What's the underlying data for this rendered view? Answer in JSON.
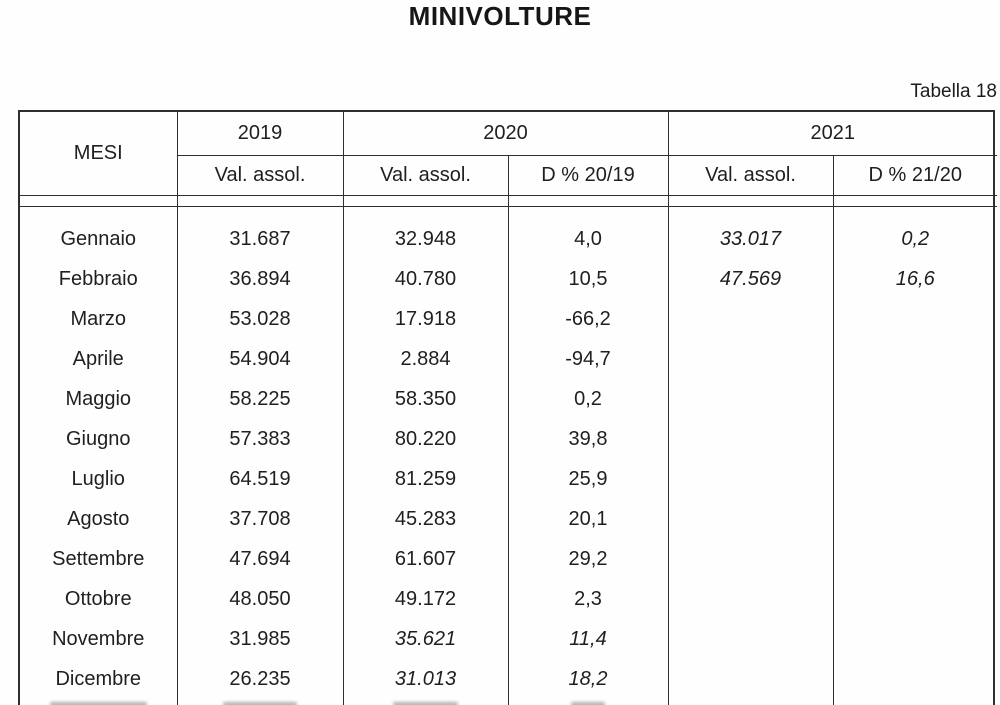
{
  "page": {
    "title": "MINIVOLTURE",
    "table_caption": "Tabella 18"
  },
  "table": {
    "header": {
      "mesi": "MESI",
      "years": [
        {
          "label": "2019"
        },
        {
          "label": "2020"
        },
        {
          "label": "2021"
        }
      ],
      "subcols": [
        "Val. assol.",
        "Val. assol.",
        "D % 20/19",
        "Val. assol.",
        "D % 21/20"
      ]
    },
    "rows": [
      {
        "cells": [
          "Gennaio",
          "31.687",
          "32.948",
          "4,0",
          "33.017",
          "0,2"
        ],
        "italic": [
          4,
          5
        ]
      },
      {
        "cells": [
          "Febbraio",
          "36.894",
          "40.780",
          "10,5",
          "47.569",
          "16,6"
        ],
        "italic": [
          4,
          5
        ]
      },
      {
        "cells": [
          "Marzo",
          "53.028",
          "17.918",
          "-66,2",
          "",
          ""
        ],
        "italic": []
      },
      {
        "cells": [
          "Aprile",
          "54.904",
          "2.884",
          "-94,7",
          "",
          ""
        ],
        "italic": []
      },
      {
        "cells": [
          "Maggio",
          "58.225",
          "58.350",
          "0,2",
          "",
          ""
        ],
        "italic": []
      },
      {
        "cells": [
          "Giugno",
          "57.383",
          "80.220",
          "39,8",
          "",
          ""
        ],
        "italic": []
      },
      {
        "cells": [
          "Luglio",
          "64.519",
          "81.259",
          "25,9",
          "",
          ""
        ],
        "italic": []
      },
      {
        "cells": [
          "Agosto",
          "37.708",
          "45.283",
          "20,1",
          "",
          ""
        ],
        "italic": []
      },
      {
        "cells": [
          "Settembre",
          "47.694",
          "61.607",
          "29,2",
          "",
          ""
        ],
        "italic": []
      },
      {
        "cells": [
          "Ottobre",
          "48.050",
          "49.172",
          "2,3",
          "",
          ""
        ],
        "italic": []
      },
      {
        "cells": [
          "Novembre",
          "31.985",
          "35.621",
          "11,4",
          "",
          ""
        ],
        "italic": [
          2,
          3
        ]
      },
      {
        "cells": [
          "Dicembre",
          "26.235",
          "31.013",
          "18,2",
          "",
          ""
        ],
        "italic": [
          2,
          3
        ]
      }
    ]
  },
  "colors": {
    "border": "#2e2e2e",
    "text": "#1c1c1c",
    "background": "#fefefe"
  }
}
